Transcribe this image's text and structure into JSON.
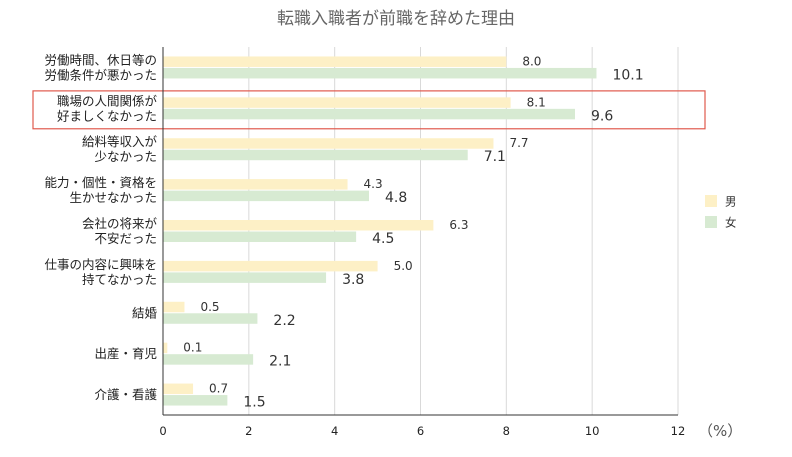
{
  "chart_data": {
    "type": "bar",
    "orientation": "horizontal",
    "title": "転職入職者が前職を辞めた理由",
    "xlabel": "",
    "ylabel": "",
    "unit_label": "（%）",
    "xlim": [
      0,
      12
    ],
    "xticks": [
      0,
      2,
      4,
      6,
      8,
      10,
      12
    ],
    "grid": true,
    "legend_position": "right",
    "categories": [
      [
        "労働時間、休日等の",
        "労働条件が悪かった"
      ],
      [
        "職場の人間関係が",
        "好ましくなかった"
      ],
      [
        "給料等収入が",
        "少なかった"
      ],
      [
        "能力・個性・資格を",
        "生かせなかった"
      ],
      [
        "会社の将来が",
        "不安だった"
      ],
      [
        "仕事の内容に興味を",
        "持てなかった"
      ],
      [
        "結婚"
      ],
      [
        "出産・育児"
      ],
      [
        "介護・看護"
      ]
    ],
    "series": [
      {
        "name": "男",
        "color": "#FDF0C6",
        "values": [
          8.0,
          8.1,
          7.7,
          4.3,
          6.3,
          5.0,
          0.5,
          0.1,
          0.7
        ]
      },
      {
        "name": "女",
        "color": "#D7EAD2",
        "values": [
          10.1,
          9.6,
          7.1,
          4.8,
          4.5,
          3.8,
          2.2,
          2.1,
          1.5
        ]
      }
    ],
    "highlight": {
      "category_index": 1,
      "color": "#E05A4E"
    }
  }
}
